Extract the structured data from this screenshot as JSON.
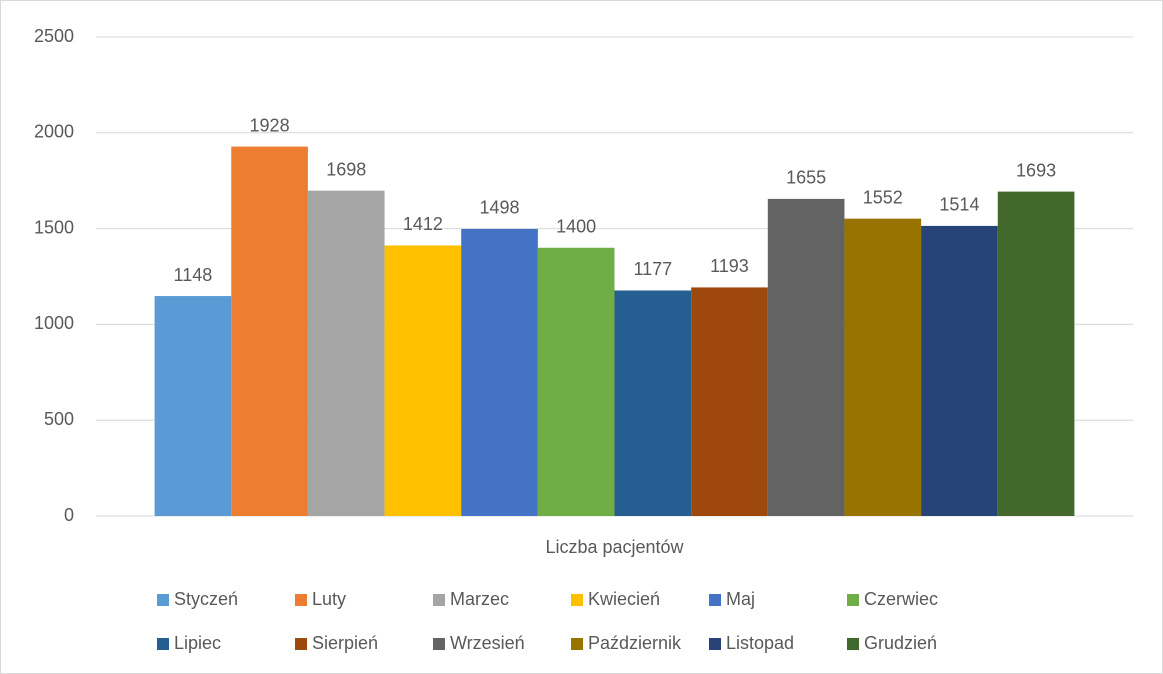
{
  "chart_data": {
    "type": "bar",
    "categories": [
      "Liczba pacjentów"
    ],
    "series": [
      {
        "name": "Styczeń",
        "color": "#5b9bd5",
        "values": [
          1148
        ]
      },
      {
        "name": "Luty",
        "color": "#ed7d31",
        "values": [
          1928
        ]
      },
      {
        "name": "Marzec",
        "color": "#a5a5a5",
        "values": [
          1698
        ]
      },
      {
        "name": "Kwiecień",
        "color": "#ffc000",
        "values": [
          1412
        ]
      },
      {
        "name": "Maj",
        "color": "#4472c4",
        "values": [
          1498
        ]
      },
      {
        "name": "Czerwiec",
        "color": "#70ad47",
        "values": [
          1400
        ]
      },
      {
        "name": "Lipiec",
        "color": "#255e91",
        "values": [
          1177
        ]
      },
      {
        "name": "Sierpień",
        "color": "#9e480e",
        "values": [
          1193
        ]
      },
      {
        "name": "Wrzesień",
        "color": "#636363",
        "values": [
          1655
        ]
      },
      {
        "name": "Październik",
        "color": "#997300",
        "values": [
          1552
        ]
      },
      {
        "name": "Listopad",
        "color": "#264478",
        "values": [
          1514
        ]
      },
      {
        "name": "Grudzień",
        "color": "#43682b",
        "values": [
          1693
        ]
      }
    ],
    "ylim": [
      0,
      2500
    ],
    "yticks": [
      0,
      500,
      1000,
      1500,
      2000,
      2500
    ],
    "grid": true,
    "legend": "bottom"
  }
}
